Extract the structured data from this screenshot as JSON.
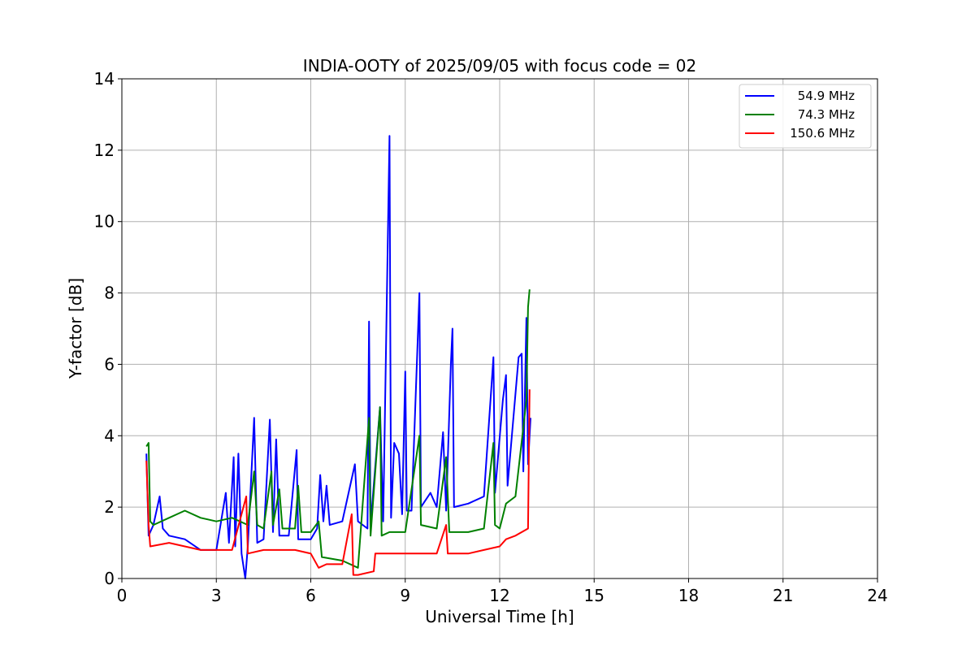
{
  "chart_data": {
    "type": "line",
    "title": "INDIA-OOTY of 2025/09/05 with focus code = 02",
    "xlabel": "Universal Time [h]",
    "ylabel": "Y-factor [dB]",
    "xlim": [
      0,
      24
    ],
    "ylim": [
      0,
      14
    ],
    "xticks": [
      0,
      3,
      6,
      9,
      12,
      15,
      18,
      21,
      24
    ],
    "yticks": [
      0,
      2,
      4,
      6,
      8,
      10,
      12,
      14
    ],
    "xtick_labels": [
      "0",
      "3",
      "6",
      "9",
      "12",
      "15",
      "18",
      "21",
      "24"
    ],
    "ytick_labels": [
      "0",
      "2",
      "4",
      "6",
      "8",
      "10",
      "12",
      "14"
    ],
    "grid": true,
    "legend_position": "top-right",
    "series": [
      {
        "name": "54.9 MHz",
        "color": "#0000ff",
        "points": [
          [
            0.78,
            3.5
          ],
          [
            0.85,
            1.2
          ],
          [
            1.0,
            1.5
          ],
          [
            1.2,
            2.3
          ],
          [
            1.3,
            1.4
          ],
          [
            1.5,
            1.2
          ],
          [
            2.0,
            1.1
          ],
          [
            2.5,
            0.8
          ],
          [
            3.0,
            0.8
          ],
          [
            3.3,
            2.4
          ],
          [
            3.4,
            1.0
          ],
          [
            3.55,
            3.4
          ],
          [
            3.6,
            0.9
          ],
          [
            3.7,
            3.5
          ],
          [
            3.8,
            0.7
          ],
          [
            3.92,
            0.0
          ],
          [
            4.0,
            0.9
          ],
          [
            4.2,
            4.5
          ],
          [
            4.3,
            1.0
          ],
          [
            4.5,
            1.1
          ],
          [
            4.7,
            4.45
          ],
          [
            4.8,
            1.3
          ],
          [
            4.9,
            3.9
          ],
          [
            5.0,
            1.2
          ],
          [
            5.3,
            1.2
          ],
          [
            5.55,
            3.6
          ],
          [
            5.6,
            1.1
          ],
          [
            6.0,
            1.1
          ],
          [
            6.2,
            1.4
          ],
          [
            6.3,
            2.9
          ],
          [
            6.4,
            1.6
          ],
          [
            6.5,
            2.6
          ],
          [
            6.6,
            1.5
          ],
          [
            7.0,
            1.6
          ],
          [
            7.4,
            3.2
          ],
          [
            7.5,
            1.6
          ],
          [
            7.8,
            1.4
          ],
          [
            7.85,
            7.2
          ],
          [
            7.9,
            1.5
          ],
          [
            8.2,
            4.8
          ],
          [
            8.3,
            1.6
          ],
          [
            8.5,
            12.4
          ],
          [
            8.55,
            1.7
          ],
          [
            8.65,
            3.8
          ],
          [
            8.8,
            3.5
          ],
          [
            8.9,
            1.8
          ],
          [
            9.0,
            5.8
          ],
          [
            9.05,
            1.9
          ],
          [
            9.2,
            1.9
          ],
          [
            9.45,
            8.0
          ],
          [
            9.5,
            2.0
          ],
          [
            9.8,
            2.4
          ],
          [
            10.0,
            2.0
          ],
          [
            10.2,
            4.1
          ],
          [
            10.3,
            1.9
          ],
          [
            10.45,
            6.0
          ],
          [
            10.5,
            7.0
          ],
          [
            10.55,
            2.0
          ],
          [
            11.0,
            2.1
          ],
          [
            11.5,
            2.3
          ],
          [
            11.8,
            6.2
          ],
          [
            11.85,
            2.4
          ],
          [
            12.1,
            5.0
          ],
          [
            12.2,
            5.7
          ],
          [
            12.25,
            2.6
          ],
          [
            12.6,
            6.2
          ],
          [
            12.7,
            6.3
          ],
          [
            12.75,
            3.0
          ],
          [
            12.85,
            7.3
          ],
          [
            12.9,
            3.2
          ],
          [
            12.98,
            4.5
          ]
        ]
      },
      {
        "name": "74.3 MHz",
        "color": "#008000",
        "points": [
          [
            0.78,
            3.7
          ],
          [
            0.85,
            3.8
          ],
          [
            0.9,
            1.6
          ],
          [
            1.0,
            1.5
          ],
          [
            1.5,
            1.7
          ],
          [
            2.0,
            1.9
          ],
          [
            2.5,
            1.7
          ],
          [
            3.0,
            1.6
          ],
          [
            3.5,
            1.7
          ],
          [
            4.0,
            1.5
          ],
          [
            4.2,
            3.0
          ],
          [
            4.3,
            1.5
          ],
          [
            4.5,
            1.4
          ],
          [
            4.75,
            3.0
          ],
          [
            4.8,
            1.5
          ],
          [
            5.0,
            2.5
          ],
          [
            5.1,
            1.4
          ],
          [
            5.5,
            1.4
          ],
          [
            5.6,
            2.6
          ],
          [
            5.7,
            1.3
          ],
          [
            6.0,
            1.3
          ],
          [
            6.25,
            1.6
          ],
          [
            6.35,
            0.6
          ],
          [
            7.0,
            0.5
          ],
          [
            7.5,
            0.3
          ],
          [
            7.85,
            4.5
          ],
          [
            7.9,
            1.2
          ],
          [
            8.2,
            4.8
          ],
          [
            8.25,
            1.2
          ],
          [
            8.5,
            1.3
          ],
          [
            9.0,
            1.3
          ],
          [
            9.45,
            4.0
          ],
          [
            9.5,
            1.5
          ],
          [
            10.0,
            1.4
          ],
          [
            10.3,
            3.4
          ],
          [
            10.4,
            1.3
          ],
          [
            11.0,
            1.3
          ],
          [
            11.5,
            1.4
          ],
          [
            11.8,
            3.8
          ],
          [
            11.85,
            1.5
          ],
          [
            12.0,
            1.4
          ],
          [
            12.2,
            2.1
          ],
          [
            12.5,
            2.3
          ],
          [
            12.85,
            5.0
          ],
          [
            12.9,
            7.6
          ],
          [
            12.95,
            8.1
          ]
        ]
      },
      {
        "name": "150.6 MHz",
        "color": "#ff0000",
        "points": [
          [
            0.78,
            3.3
          ],
          [
            0.85,
            1.5
          ],
          [
            0.9,
            0.9
          ],
          [
            1.5,
            1.0
          ],
          [
            2.0,
            0.9
          ],
          [
            2.5,
            0.8
          ],
          [
            3.0,
            0.8
          ],
          [
            3.5,
            0.8
          ],
          [
            3.95,
            2.3
          ],
          [
            4.0,
            0.7
          ],
          [
            4.5,
            0.8
          ],
          [
            5.0,
            0.8
          ],
          [
            5.5,
            0.8
          ],
          [
            6.0,
            0.7
          ],
          [
            6.25,
            0.3
          ],
          [
            6.5,
            0.4
          ],
          [
            7.0,
            0.4
          ],
          [
            7.3,
            1.8
          ],
          [
            7.35,
            0.1
          ],
          [
            7.5,
            0.1
          ],
          [
            8.0,
            0.2
          ],
          [
            8.05,
            0.7
          ],
          [
            8.5,
            0.7
          ],
          [
            9.0,
            0.7
          ],
          [
            9.5,
            0.7
          ],
          [
            10.0,
            0.7
          ],
          [
            10.3,
            1.5
          ],
          [
            10.35,
            0.7
          ],
          [
            11.0,
            0.7
          ],
          [
            11.5,
            0.8
          ],
          [
            12.0,
            0.9
          ],
          [
            12.2,
            1.1
          ],
          [
            12.5,
            1.2
          ],
          [
            12.9,
            1.4
          ],
          [
            12.95,
            5.3
          ]
        ]
      }
    ]
  }
}
